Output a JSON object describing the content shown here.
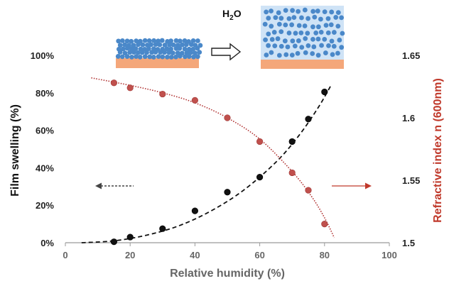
{
  "chart_data": {
    "type": "scatter",
    "xlabel": "Relative humidity (%)",
    "ylabel_left": "Film swelling (%)",
    "ylabel_right": "Refractive index n (600nm)",
    "xlim": [
      0,
      100
    ],
    "ylim_left": [
      0,
      100
    ],
    "ylim_right": [
      1.5,
      1.65
    ],
    "x_ticks": [
      "0",
      "20",
      "40",
      "60",
      "80",
      "100"
    ],
    "y_left_ticks": [
      "0%",
      "20%",
      "40%",
      "60%",
      "80%",
      "100%"
    ],
    "y_right_ticks": [
      "1.5",
      "1.55",
      "1.6",
      "1.65"
    ],
    "grid": false,
    "series": [
      {
        "axis": "left",
        "marker_color": "#111111",
        "trend_color": "#111111",
        "trend_style": "dashed",
        "points": [
          {
            "x": 15,
            "y": 0.5
          },
          {
            "x": 20,
            "y": 3
          },
          {
            "x": 30,
            "y": 7.5
          },
          {
            "x": 40,
            "y": 17
          },
          {
            "x": 50,
            "y": 27
          },
          {
            "x": 60,
            "y": 35
          },
          {
            "x": 70,
            "y": 54
          },
          {
            "x": 75,
            "y": 66
          },
          {
            "x": 80,
            "y": 80.5
          }
        ],
        "trend": [
          {
            "x": 5,
            "y": 0
          },
          {
            "x": 15,
            "y": 1
          },
          {
            "x": 25,
            "y": 4
          },
          {
            "x": 35,
            "y": 9
          },
          {
            "x": 45,
            "y": 17
          },
          {
            "x": 55,
            "y": 28
          },
          {
            "x": 65,
            "y": 43
          },
          {
            "x": 72,
            "y": 57
          },
          {
            "x": 78,
            "y": 72
          },
          {
            "x": 82,
            "y": 84
          }
        ]
      },
      {
        "axis": "right",
        "marker_color": "#c0504d",
        "trend_color": "#b03030",
        "trend_style": "dotted",
        "points": [
          {
            "x": 15,
            "y": 1.628
          },
          {
            "x": 20,
            "y": 1.624
          },
          {
            "x": 30,
            "y": 1.619
          },
          {
            "x": 40,
            "y": 1.614
          },
          {
            "x": 50,
            "y": 1.6
          },
          {
            "x": 60,
            "y": 1.581
          },
          {
            "x": 70,
            "y": 1.556
          },
          {
            "x": 75,
            "y": 1.542
          },
          {
            "x": 80,
            "y": 1.515
          }
        ],
        "trend": [
          {
            "x": 8,
            "y": 1.632
          },
          {
            "x": 20,
            "y": 1.626
          },
          {
            "x": 30,
            "y": 1.62
          },
          {
            "x": 40,
            "y": 1.612
          },
          {
            "x": 50,
            "y": 1.6
          },
          {
            "x": 60,
            "y": 1.583
          },
          {
            "x": 70,
            "y": 1.557
          },
          {
            "x": 76,
            "y": 1.537
          },
          {
            "x": 80,
            "y": 1.52
          },
          {
            "x": 83,
            "y": 1.504
          }
        ]
      }
    ],
    "annotations": {
      "inset_label": "H",
      "inset_label_sub": "2",
      "inset_label_end": "O",
      "left_arrow_color": "#444444",
      "right_arrow_color": "#c0392b",
      "substrate_color": "#f4a77a",
      "particle_color": "#4a88c9",
      "swollen_bg_color": "#cfe3f6"
    }
  }
}
